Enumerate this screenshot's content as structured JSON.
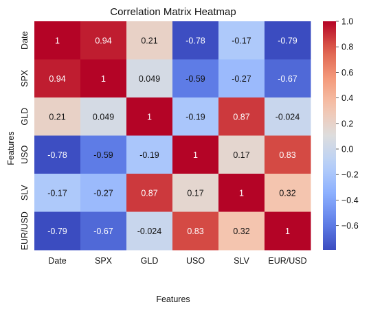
{
  "chart_data": {
    "type": "heatmap",
    "title": "Correlation Matrix Heatmap",
    "xlabel": "Features",
    "ylabel": "Features",
    "x_categories": [
      "Date",
      "SPX",
      "GLD",
      "USO",
      "SLV",
      "EUR/USD"
    ],
    "y_categories": [
      "Date",
      "SPX",
      "GLD",
      "USO",
      "SLV",
      "EUR/USD"
    ],
    "values": [
      [
        1,
        0.94,
        0.21,
        -0.78,
        -0.17,
        -0.79
      ],
      [
        0.94,
        1,
        0.049,
        -0.59,
        -0.27,
        -0.67
      ],
      [
        0.21,
        0.049,
        1,
        -0.19,
        0.87,
        -0.024
      ],
      [
        -0.78,
        -0.59,
        -0.19,
        1,
        0.17,
        0.83
      ],
      [
        -0.17,
        -0.27,
        0.87,
        0.17,
        1,
        0.32
      ],
      [
        -0.79,
        -0.67,
        -0.024,
        0.83,
        0.32,
        1
      ]
    ],
    "value_labels": [
      [
        "1",
        "0.94",
        "0.21",
        "-0.78",
        "-0.17",
        "-0.79"
      ],
      [
        "0.94",
        "1",
        "0.049",
        "-0.59",
        "-0.27",
        "-0.67"
      ],
      [
        "0.21",
        "0.049",
        "1",
        "-0.19",
        "0.87",
        "-0.024"
      ],
      [
        "-0.78",
        "-0.59",
        "-0.19",
        "1",
        "0.17",
        "0.83"
      ],
      [
        "-0.17",
        "-0.27",
        "0.87",
        "0.17",
        "1",
        "0.32"
      ],
      [
        "-0.79",
        "-0.67",
        "-0.024",
        "0.83",
        "0.32",
        "1"
      ]
    ],
    "colormap": "coolwarm",
    "vmin": -0.79,
    "vmax": 1,
    "colorbar": {
      "ticks": [
        -0.6,
        -0.4,
        -0.2,
        0.0,
        0.2,
        0.4,
        0.6,
        0.8,
        1.0
      ],
      "tick_labels": [
        "−0.6",
        "−0.4",
        "−0.2",
        "0.0",
        "0.2",
        "0.4",
        "0.6",
        "0.8",
        "1.0"
      ],
      "placement": "right"
    },
    "grid": false
  }
}
